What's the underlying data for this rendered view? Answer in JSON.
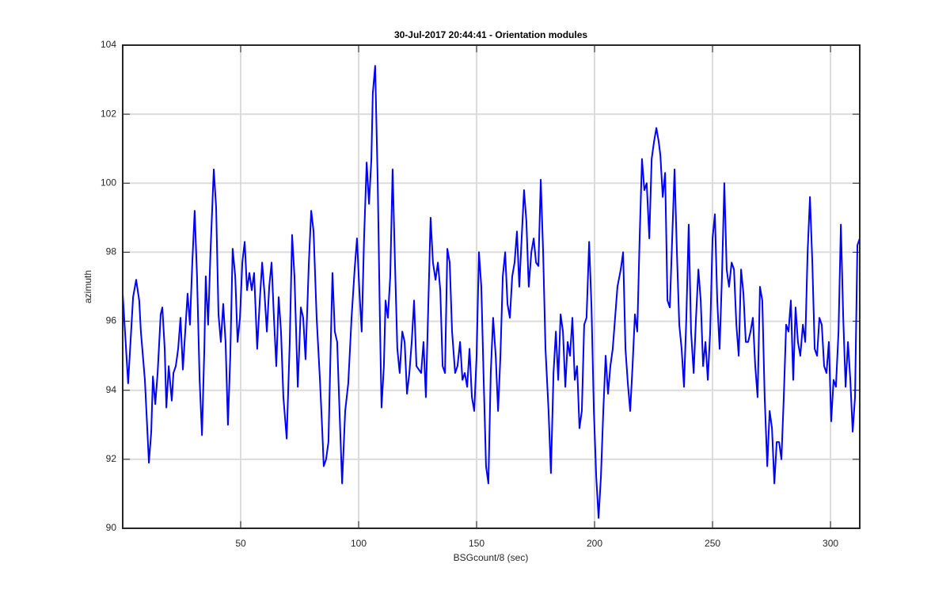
{
  "chart_data": {
    "type": "line",
    "title": "30-Jul-2017 20:44:41 - Orientation modules",
    "xlabel": "BSGcount/8 (sec)",
    "ylabel": "azimuth",
    "xlim": [
      0,
      312.4
    ],
    "ylim": [
      90,
      104
    ],
    "xticks": [
      50,
      100,
      150,
      200,
      250,
      300
    ],
    "yticks": [
      90,
      92,
      94,
      96,
      98,
      100,
      102,
      104
    ],
    "grid": true,
    "series": [
      {
        "color": "#0000ff",
        "x": [
          0,
          2.3,
          4.4,
          5.7,
          7.0,
          7.7,
          9.4,
          10.4,
          11.1,
          12.1,
          12.8,
          13.8,
          14.8,
          16.1,
          16.8,
          17.8,
          18.5,
          19.5,
          20.8,
          21.5,
          22.5,
          23.5,
          24.5,
          25.5,
          26.5,
          27.5,
          28.5,
          29.5,
          30.5,
          31.5,
          32.6,
          33.6,
          34.6,
          35.2,
          36.2,
          37.2,
          38.6,
          39.6,
          40.6,
          41.6,
          42.6,
          43.6,
          44.6,
          45.6,
          46.6,
          47.7,
          48.7,
          49.7,
          50.7,
          51.7,
          52.7,
          53.7,
          54.7,
          55.7,
          57.0,
          58.1,
          59.1,
          60.1,
          61.1,
          62.1,
          63.1,
          64.1,
          65.1,
          66.1,
          67.1,
          68.1,
          69.5,
          70.8,
          71.8,
          72.8,
          74.2,
          75.5,
          76.5,
          77.5,
          78.9,
          79.9,
          80.9,
          82.2,
          83.6,
          84.6,
          85.2,
          86.2,
          87.2,
          88.3,
          88.9,
          89.9,
          90.9,
          91.9,
          93.0,
          94.3,
          95.6,
          97.0,
          98.3,
          99.3,
          100.3,
          101.3,
          102.3,
          103.4,
          104.4,
          105.4,
          106.0,
          107.0,
          108.1,
          109.1,
          109.7,
          110.7,
          111.4,
          112.4,
          113.4,
          114.4,
          115.4,
          116.4,
          117.4,
          118.5,
          119.5,
          120.5,
          121.5,
          122.5,
          123.5,
          124.5,
          125.5,
          126.5,
          127.5,
          128.5,
          129.5,
          130.5,
          131.5,
          132.6,
          133.6,
          134.6,
          135.6,
          136.6,
          137.6,
          138.6,
          139.6,
          140.9,
          141.9,
          143.0,
          144.0,
          145.0,
          146.0,
          147.0,
          148.0,
          149.0,
          150.0,
          151.0,
          152.0,
          153.0,
          154.0,
          155.0,
          156.0,
          157.0,
          158.1,
          159.1,
          160.1,
          161.1,
          162.1,
          163.1,
          164.1,
          165.1,
          166.1,
          167.1,
          168.1,
          169.1,
          170.1,
          171.1,
          172.1,
          173.2,
          174.2,
          175.2,
          176.2,
          177.2,
          178.2,
          179.2,
          180.5,
          181.5,
          182.6,
          183.6,
          184.6,
          185.6,
          186.6,
          187.6,
          188.6,
          189.6,
          190.6,
          191.6,
          192.6,
          193.6,
          194.6,
          195.6,
          196.6,
          197.7,
          198.7,
          199.7,
          200.7,
          201.7,
          202.7,
          203.7,
          204.7,
          205.7,
          206.7,
          207.7,
          208.7,
          209.7,
          211.1,
          212.1,
          213.1,
          214.1,
          215.1,
          216.1,
          217.1,
          218.1,
          219.1,
          220.1,
          221.1,
          222.1,
          223.2,
          224.2,
          225.2,
          226.2,
          227.2,
          227.9,
          228.9,
          229.9,
          230.9,
          231.9,
          232.9,
          233.9,
          234.9,
          235.9,
          236.9,
          237.9,
          238.9,
          239.9,
          240.9,
          242.0,
          243.0,
          244.0,
          245.0,
          246.0,
          247.0,
          248.0,
          249.0,
          250.0,
          251.0,
          252.0,
          253.0,
          254.0,
          255.0,
          256.0,
          257.0,
          258.1,
          259.1,
          260.1,
          261.1,
          262.1,
          263.1,
          264.1,
          265.1,
          266.1,
          267.1,
          268.1,
          269.1,
          270.1,
          271.1,
          272.1,
          273.2,
          274.2,
          275.2,
          276.2,
          277.2,
          278.2,
          279.2,
          280.2,
          281.2,
          282.2,
          283.2,
          284.2,
          285.2,
          286.2,
          287.2,
          288.3,
          289.3,
          290.3,
          291.3,
          292.3,
          293.3,
          294.3,
          295.3,
          296.3,
          297.3,
          298.3,
          299.3,
          300.3,
          301.3,
          302.3,
          303.4,
          304.4,
          305.4,
          306.4,
          307.4,
          308.4,
          309.4,
          310.4,
          311.4,
          312.4
        ],
        "values": [
          96.8,
          94.2,
          96.7,
          97.2,
          96.6,
          95.7,
          94.3,
          92.9,
          91.9,
          92.8,
          94.4,
          93.6,
          94.5,
          96.2,
          96.4,
          95.2,
          93.5,
          94.7,
          93.7,
          94.5,
          94.7,
          95.2,
          96.1,
          94.6,
          95.7,
          96.8,
          95.9,
          97.7,
          99.2,
          97.3,
          94.3,
          92.7,
          95.2,
          97.3,
          95.9,
          98.0,
          100.4,
          99.3,
          96.2,
          95.4,
          96.5,
          95.4,
          93.0,
          95.0,
          98.1,
          97.3,
          95.4,
          96.1,
          97.7,
          98.3,
          96.9,
          97.4,
          96.9,
          97.4,
          95.2,
          96.6,
          97.7,
          96.8,
          95.7,
          97.0,
          97.7,
          96.1,
          94.7,
          96.7,
          95.7,
          93.8,
          92.6,
          95.4,
          98.5,
          97.3,
          94.1,
          96.4,
          96.1,
          94.9,
          97.7,
          99.2,
          98.6,
          96.1,
          94.3,
          92.8,
          91.8,
          92.0,
          92.5,
          95.7,
          97.4,
          95.7,
          95.4,
          93.4,
          91.3,
          93.4,
          94.2,
          96.1,
          97.5,
          98.4,
          96.9,
          95.7,
          98.4,
          100.6,
          99.4,
          100.7,
          102.6,
          103.4,
          100.0,
          95.7,
          93.5,
          94.7,
          96.6,
          96.1,
          97.3,
          100.4,
          97.7,
          95.2,
          94.5,
          95.7,
          95.4,
          93.9,
          94.5,
          95.4,
          96.6,
          94.7,
          94.6,
          94.5,
          95.4,
          93.8,
          96.4,
          99.0,
          97.7,
          97.2,
          97.7,
          96.9,
          94.7,
          94.5,
          98.1,
          97.7,
          95.7,
          94.5,
          94.7,
          95.4,
          94.3,
          94.5,
          94.1,
          95.2,
          93.8,
          93.4,
          95.0,
          98.0,
          97.0,
          94.3,
          91.8,
          91.3,
          94.5,
          96.1,
          95.0,
          93.4,
          95.0,
          97.3,
          98.0,
          96.5,
          96.1,
          97.3,
          97.7,
          98.6,
          97.0,
          98.4,
          99.8,
          98.9,
          97.0,
          98.0,
          98.4,
          97.7,
          97.6,
          100.1,
          98.0,
          95.2,
          93.4,
          91.6,
          94.5,
          95.7,
          94.3,
          96.2,
          95.7,
          94.1,
          95.4,
          95.0,
          96.1,
          94.3,
          94.7,
          92.9,
          93.4,
          95.9,
          96.1,
          98.3,
          96.4,
          93.4,
          91.5,
          90.3,
          91.5,
          93.4,
          95.0,
          93.9,
          94.7,
          95.2,
          96.1,
          97.0,
          97.5,
          98.0,
          95.2,
          94.2,
          93.4,
          94.7,
          96.2,
          95.7,
          98.4,
          100.7,
          99.8,
          100.0,
          98.4,
          100.7,
          101.2,
          101.6,
          101.2,
          100.8,
          99.6,
          100.3,
          96.6,
          96.4,
          98.4,
          100.4,
          98.0,
          95.9,
          95.2,
          94.1,
          96.1,
          98.8,
          95.7,
          94.5,
          96.1,
          97.5,
          96.6,
          94.7,
          95.4,
          94.3,
          95.7,
          98.4,
          99.1,
          96.6,
          95.2,
          97.3,
          100.0,
          97.5,
          97.0,
          97.7,
          97.5,
          95.9,
          95.0,
          97.5,
          96.8,
          95.4,
          95.4,
          95.7,
          96.1,
          94.7,
          93.8,
          97.0,
          96.6,
          93.8,
          91.8,
          93.4,
          92.9,
          91.3,
          92.5,
          92.5,
          92.0,
          93.8,
          95.9,
          95.7,
          96.6,
          94.3,
          96.4,
          95.4,
          95.0,
          95.9,
          95.4,
          98.0,
          99.6,
          97.7,
          95.2,
          95.0,
          96.1,
          95.9,
          94.7,
          94.5,
          95.4,
          93.1,
          94.3,
          94.1,
          95.7,
          98.8,
          96.1,
          94.1,
          95.4,
          94.3,
          92.8,
          93.8,
          98.2,
          98.4
        ]
      }
    ]
  }
}
